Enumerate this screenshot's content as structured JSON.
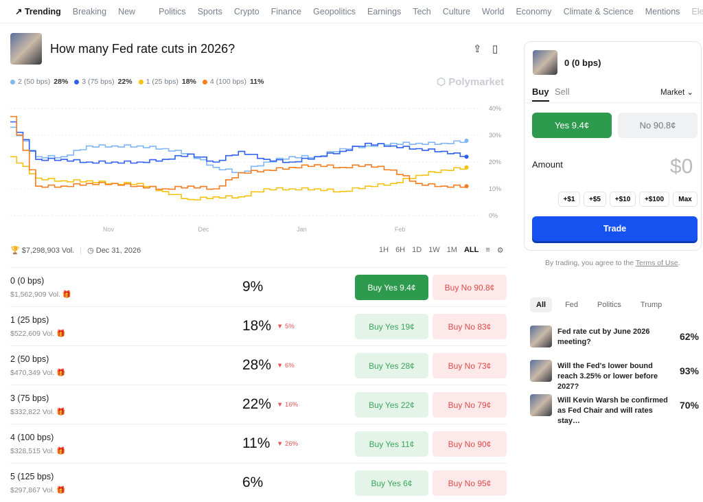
{
  "nav": {
    "items": [
      "Trending",
      "Breaking",
      "New",
      "Politics",
      "Sports",
      "Crypto",
      "Finance",
      "Geopolitics",
      "Earnings",
      "Tech",
      "Culture",
      "World",
      "Economy",
      "Climate & Science",
      "Mentions",
      "Elections"
    ]
  },
  "market": {
    "title": "How many Fed rate cuts in 2026?",
    "volume": "$7,298,903 Vol.",
    "end_date": "Dec 31, 2026",
    "watermark": "Polymarket"
  },
  "legend": [
    {
      "label": "2 (50 bps)",
      "pct": "28%",
      "color": "#7fb6f5"
    },
    {
      "label": "3 (75 bps)",
      "pct": "22%",
      "color": "#2f5ff0"
    },
    {
      "label": "1 (25 bps)",
      "pct": "18%",
      "color": "#f5c20f"
    },
    {
      "label": "4 (100 bps)",
      "pct": "11%",
      "color": "#f57c1f"
    }
  ],
  "ranges": [
    "1H",
    "6H",
    "1D",
    "1W",
    "1M",
    "ALL"
  ],
  "chart_data": {
    "type": "line",
    "x": [
      "2025-10-01",
      "2025-10-09",
      "2025-10-17",
      "2025-10-25",
      "2025-11-02",
      "2025-11-10",
      "2025-11-18",
      "2025-11-26",
      "2025-12-04",
      "2025-12-12",
      "2025-12-20",
      "2025-12-28",
      "2026-01-05",
      "2026-01-13",
      "2026-01-21",
      "2026-01-29",
      "2026-02-06",
      "2026-02-14",
      "2026-02-22"
    ],
    "xticks": [
      "Nov",
      "Dec",
      "Jan",
      "Feb"
    ],
    "yticks": [
      "0%",
      "10%",
      "20%",
      "30%",
      "40%"
    ],
    "ylim": [
      0,
      40
    ],
    "grid": true,
    "series": [
      {
        "name": "2 (50 bps)",
        "color": "#7fb6f5",
        "values": [
          33,
          22,
          22,
          26,
          26,
          26,
          25,
          23,
          18,
          16,
          20,
          22,
          22,
          25,
          26,
          27,
          27,
          27,
          28
        ]
      },
      {
        "name": "3 (75 bps)",
        "color": "#2f5ff0",
        "values": [
          35,
          21,
          21,
          20,
          20,
          20,
          21,
          23,
          20,
          24,
          21,
          20,
          22,
          24,
          27,
          26,
          25,
          24,
          22
        ]
      },
      {
        "name": "1 (25 bps)",
        "color": "#f5c20f",
        "values": [
          22,
          14,
          13,
          13,
          12,
          12,
          9,
          6,
          7,
          7,
          10,
          10,
          10,
          9,
          11,
          12,
          15,
          17,
          18
        ]
      },
      {
        "name": "4 (100 bps)",
        "color": "#f57c1f",
        "values": [
          37,
          11,
          11,
          12,
          12,
          11,
          10,
          11,
          10,
          16,
          17,
          18,
          19,
          18,
          19,
          17,
          12,
          11,
          11
        ]
      }
    ]
  },
  "outcomes": [
    {
      "name": "0 (0 bps)",
      "vol": "$1,562,909 Vol.",
      "pct": "9%",
      "change": "",
      "yes": "Buy Yes 9.4¢",
      "no": "Buy No 90.8¢"
    },
    {
      "name": "1 (25 bps)",
      "vol": "$522,609 Vol.",
      "pct": "18%",
      "change": "5%",
      "yes": "Buy Yes 19¢",
      "no": "Buy No 83¢"
    },
    {
      "name": "2 (50 bps)",
      "vol": "$470,349 Vol.",
      "pct": "28%",
      "change": "6%",
      "yes": "Buy Yes 28¢",
      "no": "Buy No 73¢"
    },
    {
      "name": "3 (75 bps)",
      "vol": "$332,822 Vol.",
      "pct": "22%",
      "change": "16%",
      "yes": "Buy Yes 22¢",
      "no": "Buy No 79¢"
    },
    {
      "name": "4 (100 bps)",
      "vol": "$328,515 Vol.",
      "pct": "11%",
      "change": "26%",
      "yes": "Buy Yes 11¢",
      "no": "Buy No 90¢"
    },
    {
      "name": "5 (125 bps)",
      "vol": "$297,867 Vol.",
      "pct": "6%",
      "change": "",
      "yes": "Buy Yes 6¢",
      "no": "Buy No 95¢"
    }
  ],
  "trade": {
    "outcome": "0 (0 bps)",
    "buy": "Buy",
    "sell": "Sell",
    "order_type": "Market",
    "yes": "Yes 9.4¢",
    "no": "No 90.8¢",
    "amount_label": "Amount",
    "amount_value": "$0",
    "quick": [
      "+$1",
      "+$5",
      "+$10",
      "+$100",
      "Max"
    ],
    "trade_button": "Trade",
    "terms_prefix": "By trading, you agree to the ",
    "terms_link": "Terms of Use",
    "terms_suffix": "."
  },
  "related": {
    "tabs": [
      "All",
      "Fed",
      "Politics",
      "Trump"
    ],
    "items": [
      {
        "q": "Fed rate cut by June 2026 meeting?",
        "pct": "62%"
      },
      {
        "q": "Will the Fed's lower bound reach 3.25% or lower before 2027?",
        "pct": "93%"
      },
      {
        "q": "Will Kevin Warsh be confirmed as Fed Chair and will rates stay…",
        "pct": "70%"
      }
    ]
  }
}
